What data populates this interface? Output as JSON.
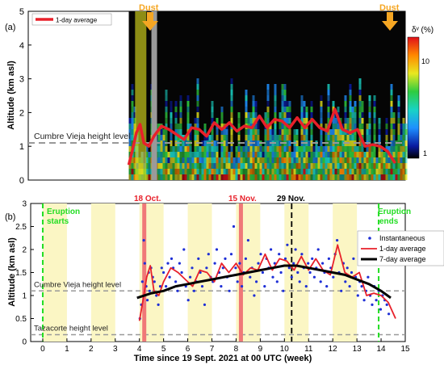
{
  "chart_data": [
    {
      "panel": "(a)",
      "type": "heatmap",
      "ylabel": "Altitude (km asl)",
      "ylim": [
        0,
        5
      ],
      "yticks": [
        "0",
        "1",
        "2",
        "3",
        "4",
        "5"
      ],
      "xlim": [
        0,
        15
      ],
      "legend": {
        "entries": [
          "1-day average"
        ],
        "placement": "top-left"
      },
      "colorbar": {
        "label": "δᵛ (%)",
        "ticks": [
          "10",
          "1"
        ]
      },
      "annotations": {
        "dust_left": "Dust",
        "dust_right": "Dust",
        "cumbre_label": "Cumbre Vieja height level"
      },
      "reference_lines": {
        "cumbre_vieja": 1.1
      },
      "series": [
        {
          "name": "1-day average",
          "x": [
            4.0,
            4.15,
            4.3,
            4.45,
            4.6,
            4.8,
            5.0,
            5.3,
            5.6,
            5.9,
            6.2,
            6.5,
            6.8,
            7.1,
            7.4,
            7.7,
            8.0,
            8.3,
            8.6,
            8.9,
            9.2,
            9.5,
            9.8,
            10.1,
            10.4,
            10.7,
            11.0,
            11.3,
            11.6,
            11.9,
            12.2,
            12.5,
            12.8,
            13.1,
            13.4,
            13.7,
            14.0,
            14.3,
            14.6
          ],
          "y": [
            0.45,
            0.9,
            1.4,
            1.65,
            1.1,
            1.0,
            1.3,
            1.6,
            1.5,
            1.35,
            1.2,
            1.55,
            1.5,
            1.3,
            1.7,
            1.5,
            1.7,
            1.45,
            1.6,
            1.55,
            1.9,
            1.55,
            1.8,
            1.75,
            1.55,
            1.85,
            1.55,
            1.8,
            1.55,
            1.45,
            2.1,
            1.5,
            1.4,
            1.5,
            1.0,
            1.05,
            1.0,
            0.85,
            0.5
          ]
        }
      ]
    },
    {
      "panel": "(b)",
      "type": "scatter",
      "xlabel": "Time since 19 Sept. 2021 at 00 UTC (week)",
      "ylabel": "Altitude (km asl)",
      "xlim": [
        -0.5,
        15
      ],
      "ylim": [
        0,
        3
      ],
      "xticks": [
        "0",
        "1",
        "2",
        "3",
        "4",
        "5",
        "6",
        "7",
        "8",
        "9",
        "10",
        "11",
        "12",
        "13",
        "14",
        "15"
      ],
      "yticks": [
        "0",
        "0.5",
        "1",
        "1.5",
        "2",
        "2.5",
        "3"
      ],
      "legend": {
        "entries": [
          "Instantaneous",
          "1-day average",
          "7-day average"
        ],
        "placement": "right"
      },
      "annotations": {
        "eruption_starts": [
          "Eruption",
          "starts"
        ],
        "eruption_ends": [
          "Eruption",
          "ends"
        ],
        "oct18": "18 Oct.",
        "nov15": "15 Nov.",
        "nov29": "29 Nov.",
        "cumbre_label": "Cumbre Vieja height level",
        "tazacorte_label": "Tazacorte height level"
      },
      "vertical_lines": {
        "eruption_start": 0.0,
        "oct18": 4.2,
        "nov15": 8.2,
        "nov29": 10.3,
        "eruption_end": 13.9
      },
      "reference_lines": {
        "cumbre_vieja": 1.1,
        "tazacorte": 0.15
      },
      "shaded_weeks": [
        [
          0,
          1
        ],
        [
          2,
          3
        ],
        [
          4,
          5
        ],
        [
          6,
          7
        ],
        [
          8,
          9
        ],
        [
          10,
          11
        ],
        [
          12,
          13
        ]
      ],
      "series": [
        {
          "name": "1-day average",
          "x": [
            4.0,
            4.15,
            4.3,
            4.45,
            4.6,
            4.8,
            5.0,
            5.3,
            5.6,
            5.9,
            6.2,
            6.5,
            6.8,
            7.1,
            7.4,
            7.7,
            8.0,
            8.3,
            8.6,
            8.9,
            9.2,
            9.5,
            9.8,
            10.1,
            10.4,
            10.7,
            11.0,
            11.3,
            11.6,
            11.9,
            12.2,
            12.5,
            12.8,
            13.1,
            13.4,
            13.7,
            14.0,
            14.3,
            14.6
          ],
          "y": [
            0.45,
            0.9,
            1.4,
            1.65,
            1.1,
            1.0,
            1.3,
            1.6,
            1.5,
            1.35,
            1.2,
            1.55,
            1.5,
            1.3,
            1.7,
            1.5,
            1.7,
            1.45,
            1.6,
            1.55,
            1.9,
            1.55,
            1.8,
            1.75,
            1.55,
            1.85,
            1.55,
            1.8,
            1.55,
            1.45,
            2.1,
            1.5,
            1.4,
            1.5,
            1.0,
            1.05,
            1.0,
            0.85,
            0.5
          ]
        },
        {
          "name": "7-day average",
          "x": [
            3.9,
            4.5,
            5.0,
            5.5,
            6.0,
            6.5,
            7.0,
            7.5,
            8.0,
            8.5,
            9.0,
            9.5,
            10.0,
            10.5,
            11.0,
            11.5,
            12.0,
            12.5,
            13.0,
            13.5,
            14.0,
            14.4
          ],
          "y": [
            0.95,
            1.05,
            1.1,
            1.2,
            1.25,
            1.3,
            1.35,
            1.4,
            1.45,
            1.5,
            1.55,
            1.6,
            1.65,
            1.65,
            1.6,
            1.55,
            1.5,
            1.45,
            1.35,
            1.25,
            1.1,
            0.95
          ]
        },
        {
          "name": "Instantaneous",
          "x": [
            4.02,
            4.08,
            4.12,
            4.18,
            4.22,
            4.28,
            4.33,
            4.38,
            4.42,
            4.48,
            4.55,
            4.62,
            4.7,
            4.78,
            4.86,
            4.92,
            5.0,
            5.1,
            5.18,
            5.25,
            5.33,
            5.4,
            5.5,
            5.58,
            5.66,
            5.75,
            5.84,
            5.92,
            6.02,
            6.1,
            6.18,
            6.26,
            6.35,
            6.44,
            6.52,
            6.6,
            6.7,
            6.78,
            6.86,
            6.95,
            7.04,
            7.12,
            7.2,
            7.3,
            7.38,
            7.46,
            7.55,
            7.63,
            7.72,
            7.8,
            7.9,
            7.98,
            8.06,
            8.15,
            8.24,
            8.32,
            8.4,
            8.5,
            8.58,
            8.66,
            8.75,
            8.84,
            8.92,
            9.02,
            9.1,
            9.18,
            9.26,
            9.35,
            9.44,
            9.52,
            9.6,
            9.7,
            9.78,
            9.86,
            9.95,
            10.04,
            10.12,
            10.2,
            10.3,
            10.38,
            10.46,
            10.55,
            10.63,
            10.72,
            10.8,
            10.9,
            10.98,
            11.06,
            11.15,
            11.24,
            11.32,
            11.4,
            11.5,
            11.58,
            11.66,
            11.75,
            11.84,
            11.92,
            12.02,
            12.1,
            12.18,
            12.26,
            12.35,
            12.44,
            12.52,
            12.6,
            12.7,
            12.78,
            12.86,
            12.95,
            13.04,
            13.12,
            13.2,
            13.3,
            13.38,
            13.46,
            13.55,
            13.63,
            13.72,
            13.8,
            13.9,
            13.98,
            14.06,
            14.15,
            14.24,
            14.32
          ],
          "y": [
            0.5,
            0.8,
            1.3,
            2.2,
            1.7,
            1.2,
            0.9,
            1.5,
            1.1,
            1.6,
            1.4,
            1.3,
            1.0,
            0.8,
            1.2,
            1.6,
            1.5,
            1.2,
            1.7,
            1.4,
            1.8,
            1.6,
            1.3,
            1.1,
            1.7,
            1.5,
            2.0,
            1.2,
            0.9,
            1.4,
            1.6,
            1.1,
            1.3,
            1.8,
            1.5,
            1.2,
            0.8,
            1.6,
            1.9,
            1.4,
            1.3,
            1.7,
            2.0,
            1.5,
            1.2,
            1.6,
            1.8,
            1.4,
            1.1,
            1.9,
            2.5,
            1.6,
            1.3,
            1.7,
            1.2,
            1.5,
            1.8,
            2.2,
            1.4,
            1.6,
            1.0,
            1.3,
            1.7,
            1.9,
            1.5,
            1.2,
            1.8,
            1.6,
            2.0,
            1.4,
            1.7,
            1.3,
            1.9,
            1.5,
            1.1,
            1.8,
            2.1,
            1.6,
            1.4,
            1.7,
            2.0,
            1.5,
            1.3,
            1.9,
            1.6,
            1.2,
            1.7,
            1.5,
            1.8,
            1.4,
            1.6,
            2.0,
            1.3,
            1.7,
            1.5,
            1.2,
            1.8,
            1.6,
            1.4,
            1.9,
            2.2,
            1.5,
            1.1,
            1.7,
            1.3,
            1.6,
            1.2,
            1.5,
            1.8,
            1.4,
            1.0,
            1.3,
            1.2,
            0.9,
            1.1,
            1.4,
            1.0,
            0.8,
            1.2,
            0.9,
            1.1,
            0.7,
            1.0,
            0.9,
            0.8,
            0.6
          ]
        }
      ]
    }
  ],
  "colors": {
    "one_day": "#e8202a",
    "seven_day": "#000000",
    "instant": "#1e2fd6",
    "eruption": "#22dd22",
    "vline": "#f07878",
    "shade": "#fbf6c4",
    "dust_arrow": "#f5a623",
    "dust_text": "#f5a623",
    "ref": "#999999"
  }
}
